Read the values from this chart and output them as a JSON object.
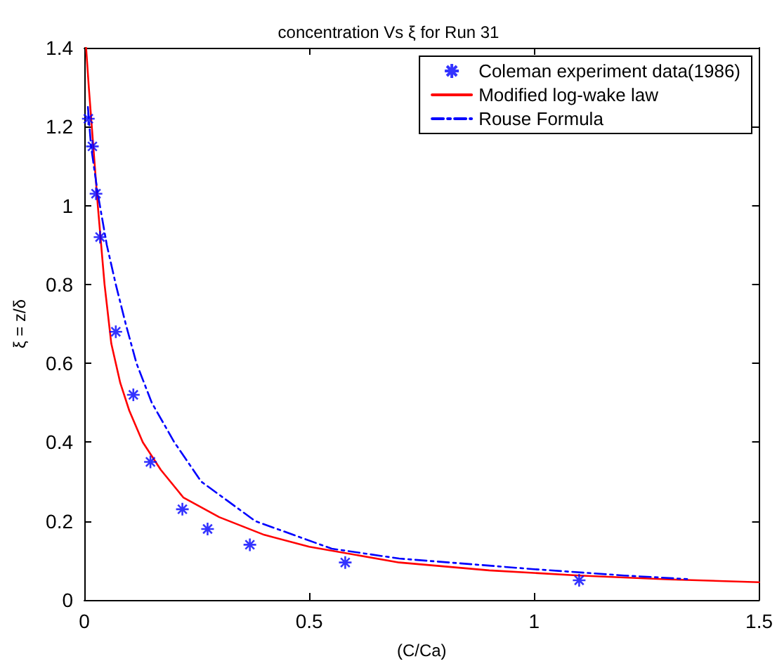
{
  "chart_data": {
    "type": "scatter",
    "title": "concentration Vs ξ for Run 31",
    "xlabel": "(C/Ca)",
    "ylabel": "ξ = z/δ",
    "xlim": [
      0,
      1.5
    ],
    "xticks": [
      0,
      0.5,
      1,
      1.5
    ],
    "ylim": [
      0,
      1.4
    ],
    "yticks": [
      0,
      0.2,
      0.4,
      0.6,
      0.8,
      1,
      1.2,
      1.4
    ],
    "grid": false,
    "legend": "top right",
    "series": [
      {
        "name": "Coleman experiment data(1986)",
        "color": "#0000ff",
        "marker": "cross",
        "x": [
          0.009,
          0.018,
          0.026,
          0.035,
          0.07,
          0.109,
          0.147,
          0.218,
          0.274,
          0.368,
          0.58,
          1.1
        ],
        "values": [
          1.22,
          1.15,
          1.03,
          0.92,
          0.68,
          0.52,
          0.35,
          0.23,
          0.18,
          0.14,
          0.095,
          0.05
        ]
      },
      {
        "name": "Modified log-wake law",
        "type": "line",
        "color": "#ff0000",
        "marker": "none",
        "line_style": "solid",
        "x": [
          0.004,
          0.01,
          0.02,
          0.03,
          0.045,
          0.06,
          0.08,
          0.1,
          0.13,
          0.17,
          0.22,
          0.3,
          0.4,
          0.5,
          0.7,
          0.9,
          1.1,
          1.3,
          1.5
        ],
        "values": [
          1.4,
          1.3,
          1.15,
          1.0,
          0.8,
          0.65,
          0.55,
          0.48,
          0.4,
          0.33,
          0.26,
          0.21,
          0.165,
          0.135,
          0.095,
          0.075,
          0.062,
          0.052,
          0.045
        ]
      },
      {
        "name": "Rouse Formula",
        "type": "line",
        "color": "#0000ff",
        "marker": "none",
        "line_style": "dashdot",
        "x": [
          0.008,
          0.015,
          0.03,
          0.05,
          0.07,
          0.092,
          0.116,
          0.15,
          0.2,
          0.26,
          0.38,
          0.55,
          0.7,
          1.0,
          1.2,
          1.34
        ],
        "values": [
          1.25,
          1.15,
          1.03,
          0.9,
          0.8,
          0.7,
          0.6,
          0.5,
          0.4,
          0.3,
          0.2,
          0.13,
          0.105,
          0.078,
          0.062,
          0.053
        ]
      }
    ]
  }
}
